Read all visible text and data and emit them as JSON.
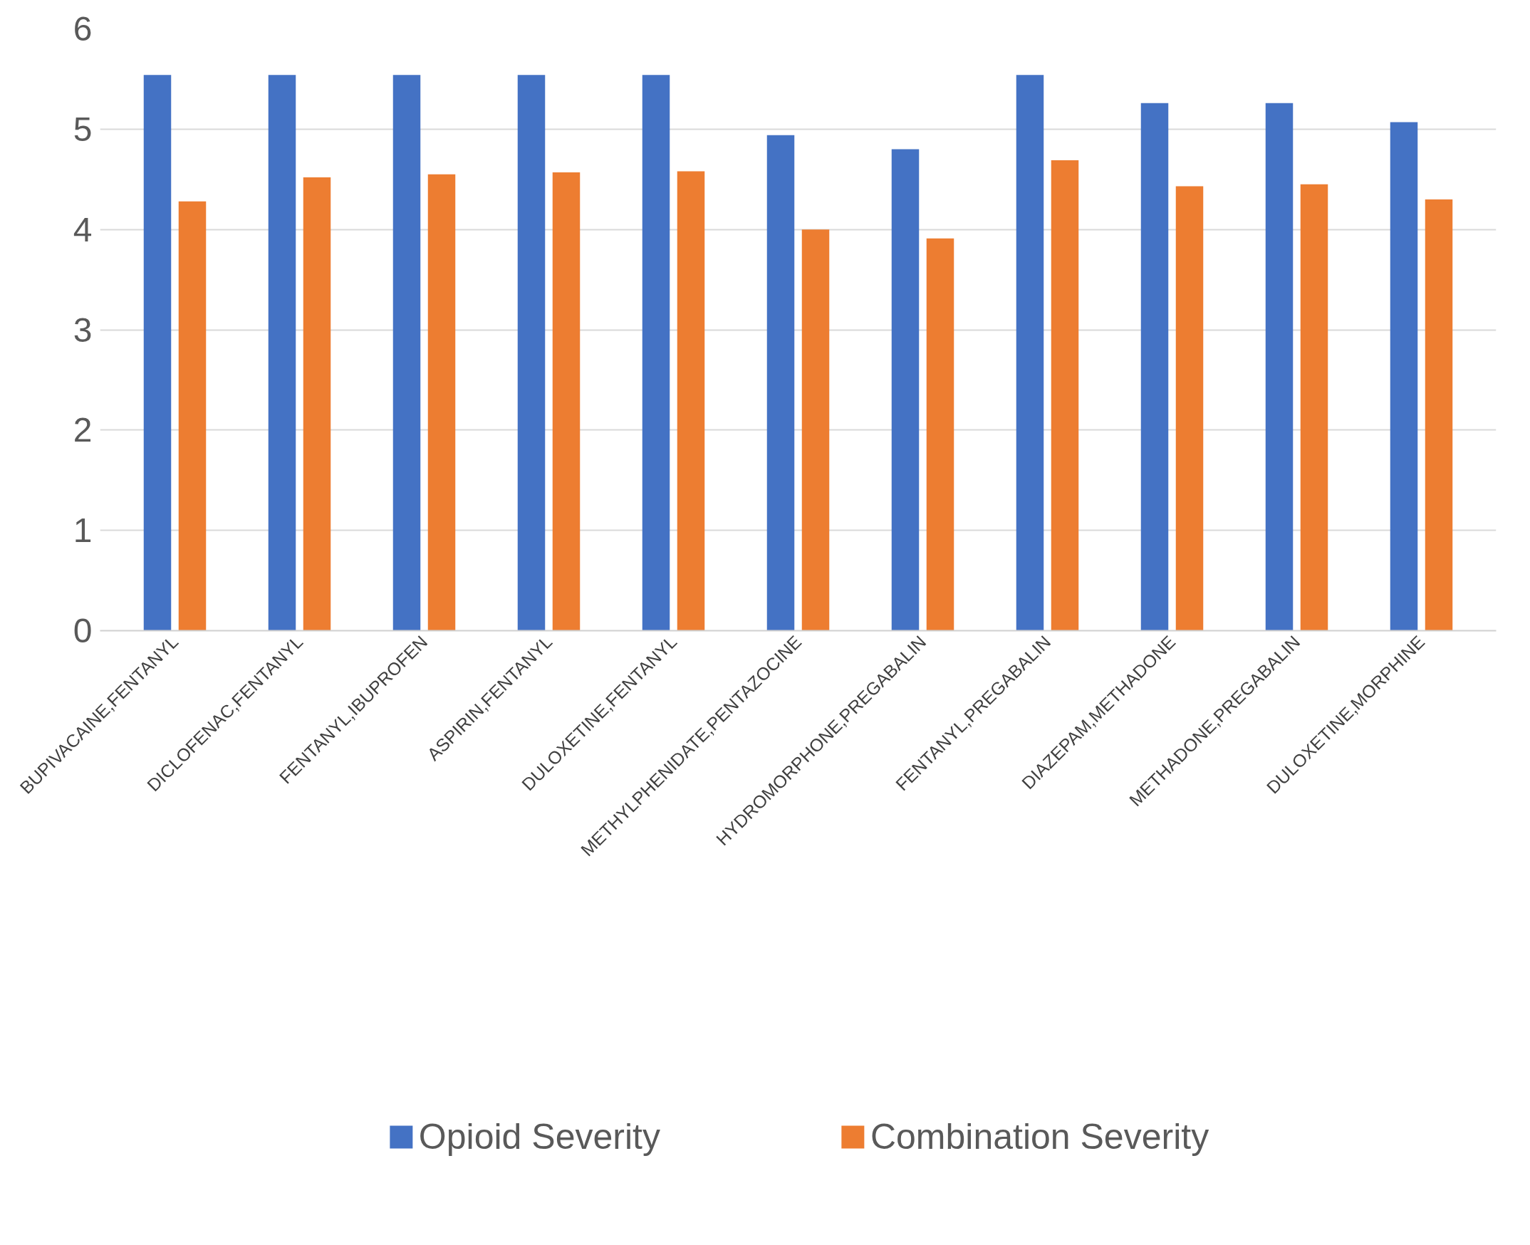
{
  "chart_data": {
    "type": "bar",
    "categories": [
      "BUPIVACAINE,FENTANYL",
      "DICLOFENAC,FENTANYL",
      "FENTANYL,IBUPROFEN",
      "ASPIRIN,FENTANYL",
      "DULOXETINE,FENTANYL",
      "METHYLPHENIDATE,PENTAZOCINE",
      "HYDROMORPHONE,PREGABALIN",
      "FENTANYL,PREGABALIN",
      "DIAZEPAM,METHADONE",
      "METHADONE,PREGABALIN",
      "DULOXETINE,MORPHINE"
    ],
    "series": [
      {
        "name": "Opioid Severity",
        "color": "#4472c4",
        "values": [
          5.54,
          5.54,
          5.54,
          5.54,
          5.54,
          4.94,
          4.8,
          5.54,
          5.26,
          5.26,
          5.07
        ]
      },
      {
        "name": "Combination Severity",
        "color": "#ed7d31",
        "values": [
          4.28,
          4.52,
          4.55,
          4.57,
          4.58,
          4.0,
          3.91,
          4.69,
          4.43,
          4.45,
          4.3
        ]
      }
    ],
    "ylim": [
      0,
      6
    ],
    "yticks": [
      0,
      1,
      2,
      3,
      4,
      5,
      6
    ],
    "grid": "y",
    "legend": "bottom"
  }
}
